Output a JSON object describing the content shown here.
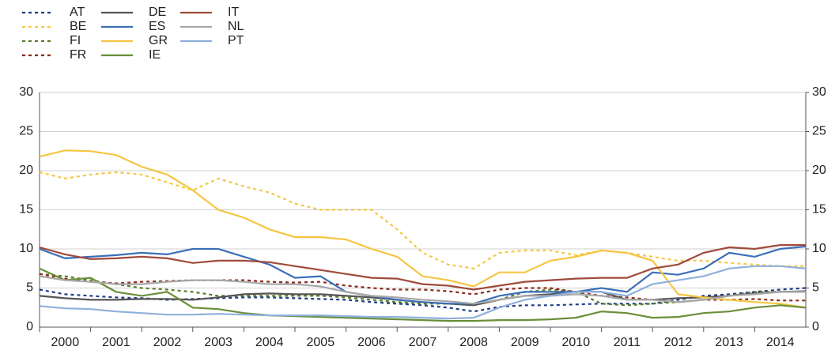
{
  "chart_data": {
    "type": "line",
    "x": [
      2000,
      2000.5,
      2001,
      2001.5,
      2002,
      2002.5,
      2003,
      2003.5,
      2004,
      2004.5,
      2005,
      2005.5,
      2006,
      2006.5,
      2007,
      2007.5,
      2008,
      2008.5,
      2009,
      2009.5,
      2010,
      2010.5,
      2011,
      2011.5,
      2012,
      2012.5,
      2013,
      2013.5,
      2014,
      2014.5,
      2015
    ],
    "xlim": [
      2000,
      2015
    ],
    "xticks": [
      {
        "value": 2000,
        "label": "2000"
      },
      {
        "value": 2001,
        "label": "2001"
      },
      {
        "value": 2002,
        "label": "2002"
      },
      {
        "value": 2003,
        "label": "2003"
      },
      {
        "value": 2004,
        "label": "2004"
      },
      {
        "value": 2005,
        "label": "2005"
      },
      {
        "value": 2006,
        "label": "2006"
      },
      {
        "value": 2007,
        "label": "2007"
      },
      {
        "value": 2008,
        "label": "2008"
      },
      {
        "value": 2009,
        "label": "2009"
      },
      {
        "value": 2010,
        "label": "2010"
      },
      {
        "value": 2011,
        "label": "2011"
      },
      {
        "value": 2012,
        "label": "2012"
      },
      {
        "value": 2013,
        "label": "2013"
      },
      {
        "value": 2014,
        "label": "2014"
      }
    ],
    "ylim": [
      0,
      30
    ],
    "yticks": [
      0,
      5,
      10,
      15,
      20,
      25,
      30
    ],
    "y2lim": [
      0,
      30
    ],
    "y2ticks": [
      0,
      5,
      10,
      15,
      20,
      25,
      30
    ],
    "grid": true,
    "series": [
      {
        "name": "AT",
        "color": "#1f3c88",
        "dash": true,
        "values": [
          4.8,
          4.2,
          4,
          3.8,
          3.7,
          3.5,
          3.6,
          3.7,
          3.8,
          3.8,
          3.7,
          3.6,
          3.5,
          3.2,
          3,
          2.8,
          2.5,
          2,
          2.6,
          2.8,
          2.8,
          2.9,
          3,
          3,
          3,
          3.5,
          4,
          4.2,
          4.5,
          4.8,
          5
        ]
      },
      {
        "name": "BE",
        "color": "#f5c842",
        "dash": true,
        "values": [
          19.8,
          19,
          19.5,
          19.8,
          19.5,
          18.5,
          17.5,
          19,
          18,
          17.2,
          15.8,
          15,
          15,
          15,
          12.5,
          9.5,
          8,
          7.5,
          9.5,
          9.8,
          9.8,
          9.2,
          9.8,
          9.5,
          9,
          8.5,
          8.5,
          8.2,
          8,
          7.8,
          7.8
        ]
      },
      {
        "name": "FI",
        "color": "#5a7d2a",
        "dash": true,
        "values": [
          6.8,
          6.5,
          6,
          5.5,
          5,
          4.8,
          4.5,
          4,
          4,
          4,
          4,
          4,
          3.8,
          3.5,
          3.2,
          3,
          3,
          2.8,
          3.5,
          4.5,
          4.8,
          4.5,
          3,
          2.8,
          3,
          3.2,
          3.5,
          4,
          4.5,
          4.5,
          4.5
        ]
      },
      {
        "name": "FR",
        "color": "#8b2b1e",
        "dash": true,
        "values": [
          6.8,
          6.2,
          5.8,
          5.6,
          5.8,
          5.9,
          6,
          6,
          6,
          5.8,
          5.7,
          5.8,
          5.3,
          5,
          4.8,
          4.8,
          4.6,
          4.2,
          4.8,
          5,
          5,
          4.5,
          4,
          3.8,
          3.5,
          3.2,
          3.5,
          3.5,
          3.6,
          3.4,
          3.4
        ]
      },
      {
        "name": "DE",
        "color": "#555555",
        "dash": false,
        "values": [
          4,
          3.7,
          3.5,
          3.5,
          3.6,
          3.6,
          3.5,
          3.8,
          4.2,
          4.3,
          4.2,
          4.2,
          4,
          3.8,
          3.5,
          3.2,
          3,
          2.8,
          3.5,
          4,
          4.2,
          4.5,
          4.5,
          3.5,
          3.5,
          3.7,
          3.8,
          4,
          4.3,
          4.5,
          4.6
        ]
      },
      {
        "name": "ES",
        "color": "#3a6fb8",
        "dash": false,
        "values": [
          10,
          8.8,
          9,
          9.2,
          9.5,
          9.3,
          10,
          10,
          9,
          8,
          6.3,
          6.5,
          4.5,
          4,
          3.5,
          3.2,
          3,
          3,
          4,
          4.5,
          4.5,
          4.5,
          5,
          4.5,
          7,
          6.7,
          7.5,
          9.5,
          9,
          10,
          10.3
        ]
      },
      {
        "name": "GR",
        "color": "#f5c542",
        "dash": false,
        "values": [
          21.8,
          22.6,
          22.5,
          22,
          20.5,
          19.5,
          17.5,
          15,
          14,
          12.5,
          11.5,
          11.5,
          11.2,
          10,
          9,
          6.5,
          6,
          5.2,
          7,
          7,
          8.5,
          9,
          9.8,
          9.5,
          8.5,
          4.2,
          3.8,
          3.5,
          3.2,
          3,
          2.5
        ]
      },
      {
        "name": "IE",
        "color": "#6a8f3a",
        "dash": false,
        "values": [
          7.5,
          6,
          6.3,
          4.5,
          4,
          4.5,
          2.5,
          2.3,
          1.8,
          1.5,
          1.4,
          1.3,
          1.2,
          1.1,
          1,
          0.9,
          0.8,
          0.8,
          0.9,
          0.9,
          1,
          1.2,
          2,
          1.8,
          1.2,
          1.3,
          1.8,
          2,
          2.5,
          2.8,
          2.5
        ]
      },
      {
        "name": "IT",
        "color": "#a04a3a",
        "dash": false,
        "values": [
          10.2,
          9.3,
          8.7,
          8.8,
          9,
          8.8,
          8.2,
          8.5,
          8.5,
          8.3,
          7.8,
          7.3,
          6.8,
          6.3,
          6.2,
          5.5,
          5.3,
          4.8,
          5.3,
          5.8,
          6,
          6.2,
          6.3,
          6.3,
          7.5,
          8,
          9.5,
          10.2,
          10,
          10.5,
          10.5
        ]
      },
      {
        "name": "NL",
        "color": "#a8a8a8",
        "dash": false,
        "values": [
          6.5,
          6,
          5.8,
          5.5,
          5.5,
          5.8,
          6,
          6,
          5.8,
          5.5,
          5.5,
          5.2,
          4.5,
          4,
          3.8,
          3.5,
          3.3,
          3,
          3.5,
          4,
          4,
          4.2,
          4,
          3.5,
          3.5,
          3.2,
          3.5,
          4,
          4.2,
          4.5,
          4.5
        ]
      },
      {
        "name": "PT",
        "color": "#8fb0dd",
        "dash": false,
        "values": [
          2.7,
          2.4,
          2.3,
          2,
          1.8,
          1.6,
          1.6,
          1.7,
          1.6,
          1.5,
          1.5,
          1.5,
          1.4,
          1.3,
          1.3,
          1.2,
          1.1,
          1.2,
          2.5,
          3.5,
          4,
          4.5,
          4.5,
          4,
          5.5,
          6,
          6.5,
          7.5,
          7.8,
          7.8,
          7.5
        ]
      }
    ]
  }
}
